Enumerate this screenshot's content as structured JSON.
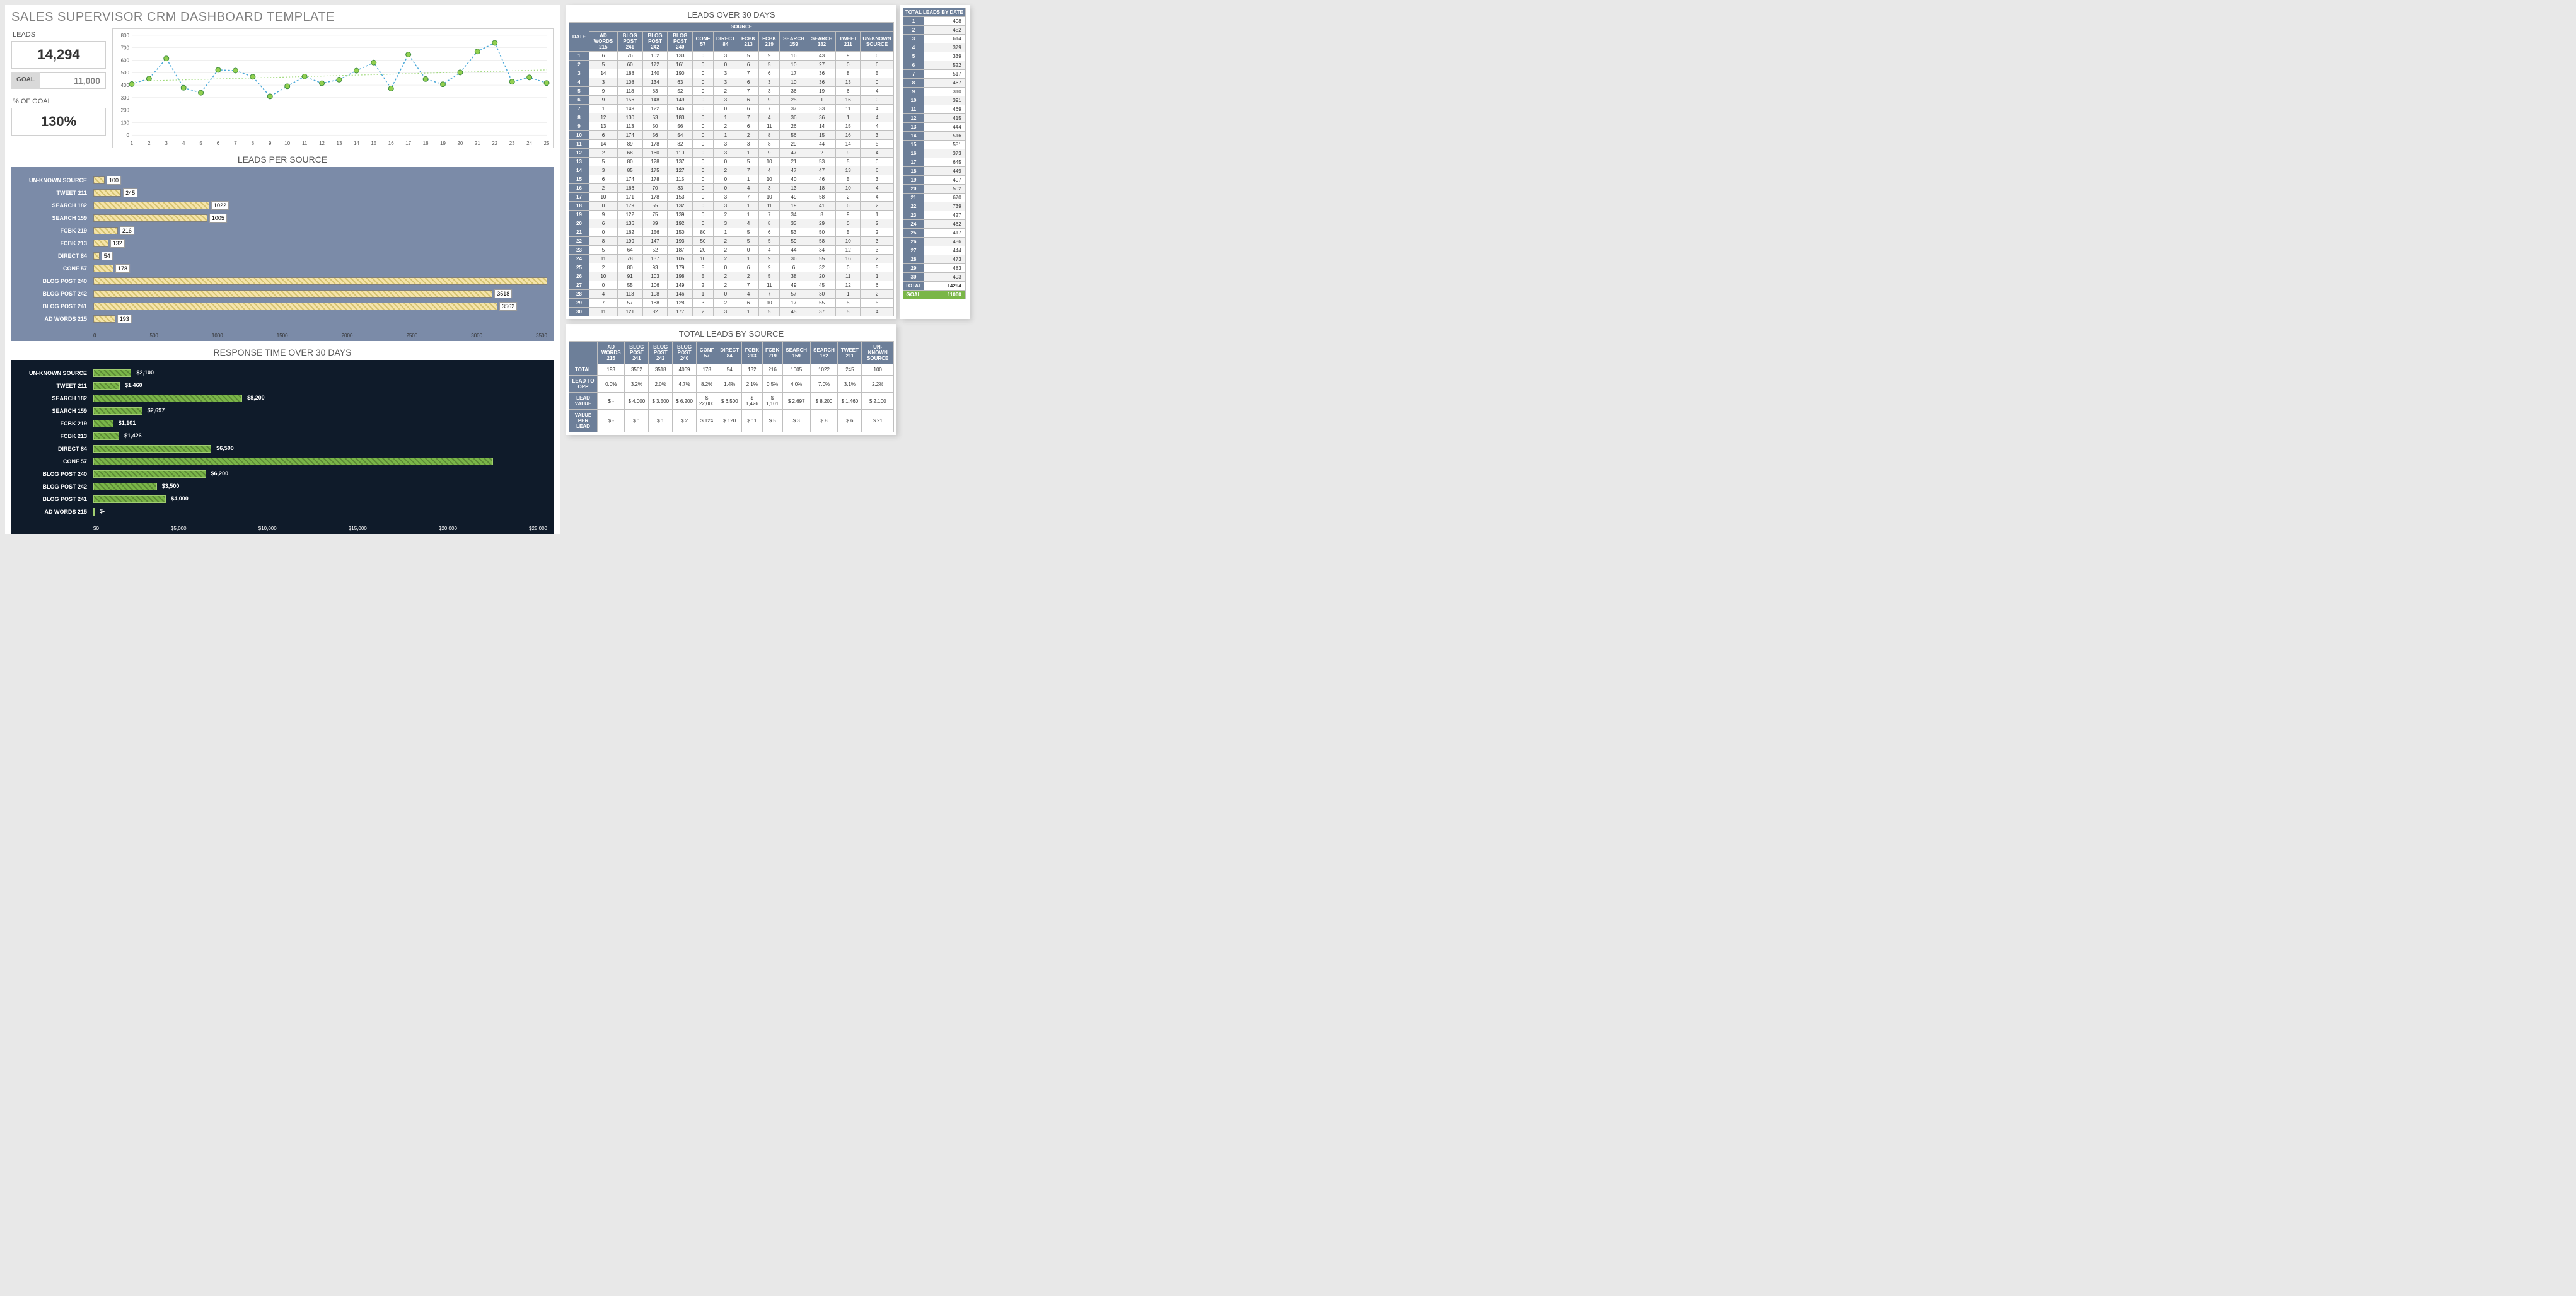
{
  "title": "SALES SUPERVISOR CRM DASHBOARD TEMPLATE",
  "metrics": {
    "leads_label": "LEADS",
    "leads_value": "14,294",
    "goal_label": "GOAL",
    "goal_value": "11,000",
    "pct_label": "% OF GOAL",
    "pct_value": "130%"
  },
  "line_chart": {
    "type": "line",
    "x_labels": [
      "1",
      "2",
      "3",
      "4",
      "5",
      "6",
      "7",
      "8",
      "9",
      "10",
      "11",
      "12",
      "13",
      "14",
      "15",
      "16",
      "17",
      "18",
      "19",
      "20",
      "21",
      "22",
      "23",
      "24",
      "25"
    ],
    "series_values": [
      408,
      452,
      614,
      379,
      339,
      522,
      517,
      467,
      310,
      391,
      469,
      415,
      444,
      516,
      581,
      373,
      645,
      449,
      407,
      502,
      670,
      739,
      427,
      462,
      417
    ],
    "ylim": [
      0,
      800
    ],
    "ytick_step": 100,
    "marker_color": "#92d050",
    "line_color": "#4aa8d8",
    "trend_color": "#9fd97a",
    "marker_radius": 4,
    "line_dash": "3,3",
    "background": "#ffffff",
    "grid_color": "#e0e0e0",
    "axis_text_color": "#595959"
  },
  "leads_per_source": {
    "title": "LEADS PER SOURCE",
    "bar_fill": "#f5e4aa",
    "bar_pattern": "#d4c270",
    "bar_border": "#7f7f7f",
    "label_color": "#ffffff",
    "background": "#7b8ba8",
    "x_max": 4000,
    "x_ticks": [
      "0",
      "500",
      "1000",
      "1500",
      "2000",
      "2500",
      "3000",
      "3500"
    ],
    "rows": [
      {
        "label": "UN-KNOWN SOURCE",
        "value": 100,
        "display": "100"
      },
      {
        "label": "TWEET 211",
        "value": 245,
        "display": "245"
      },
      {
        "label": "SEARCH 182",
        "value": 1022,
        "display": "1022"
      },
      {
        "label": "SEARCH 159",
        "value": 1005,
        "display": "1005"
      },
      {
        "label": "FCBK 219",
        "value": 216,
        "display": "216"
      },
      {
        "label": "FCBK 213",
        "value": 132,
        "display": "132"
      },
      {
        "label": "DIRECT 84",
        "value": 54,
        "display": "54"
      },
      {
        "label": "CONF 57",
        "value": 178,
        "display": "178"
      },
      {
        "label": "BLOG POST 240",
        "value": 4069,
        "display": ""
      },
      {
        "label": "BLOG POST 242",
        "value": 3518,
        "display": "3518"
      },
      {
        "label": "BLOG POST 241",
        "value": 3562,
        "display": "3562"
      },
      {
        "label": "AD WORDS 215",
        "value": 193,
        "display": "193"
      }
    ]
  },
  "response_time": {
    "title": "RESPONSE TIME OVER 30 DAYS",
    "bar_fill": "#7ab648",
    "bar_pattern": "#5c8a36",
    "bar_border": "#a0cd70",
    "label_color": "#ffffff",
    "background": "#0f1b2a",
    "x_max": 25000,
    "x_ticks": [
      "$0",
      "$5,000",
      "$10,000",
      "$15,000",
      "$20,000",
      "$25,000"
    ],
    "rows": [
      {
        "label": "UN-KNOWN SOURCE",
        "value": 2100,
        "display": "$2,100"
      },
      {
        "label": "TWEET 211",
        "value": 1460,
        "display": "$1,460"
      },
      {
        "label": "SEARCH 182",
        "value": 8200,
        "display": "$8,200"
      },
      {
        "label": "SEARCH 159",
        "value": 2697,
        "display": "$2,697"
      },
      {
        "label": "FCBK 219",
        "value": 1101,
        "display": "$1,101"
      },
      {
        "label": "FCBK 213",
        "value": 1426,
        "display": "$1,426"
      },
      {
        "label": "DIRECT 84",
        "value": 6500,
        "display": "$6,500"
      },
      {
        "label": "CONF 57",
        "value": 22000,
        "display": ""
      },
      {
        "label": "BLOG POST 240",
        "value": 6200,
        "display": "$6,200"
      },
      {
        "label": "BLOG POST 242",
        "value": 3500,
        "display": "$3,500"
      },
      {
        "label": "BLOG POST 241",
        "value": 4000,
        "display": "$4,000"
      },
      {
        "label": "AD WORDS 215",
        "value": 0,
        "display": "$-"
      }
    ]
  },
  "leads_30": {
    "title": "LEADS OVER 30 DAYS",
    "super_header": "SOURCE",
    "date_header": "DATE",
    "columns": [
      "AD WORDS 215",
      "BLOG POST 241",
      "BLOG POST 242",
      "BLOG POST 240",
      "CONF 57",
      "DIRECT 84",
      "FCBK 213",
      "FCBK 219",
      "SEARCH 159",
      "SEARCH 182",
      "TWEET 211",
      "UN-KNOWN SOURCE"
    ],
    "rows": [
      [
        6,
        76,
        102,
        133,
        0,
        3,
        5,
        9,
        16,
        43,
        9,
        6
      ],
      [
        5,
        60,
        172,
        161,
        0,
        0,
        6,
        5,
        10,
        27,
        0,
        6
      ],
      [
        14,
        188,
        140,
        190,
        0,
        3,
        7,
        6,
        17,
        36,
        8,
        5
      ],
      [
        3,
        108,
        134,
        63,
        0,
        3,
        6,
        3,
        10,
        36,
        13,
        0
      ],
      [
        9,
        118,
        83,
        52,
        0,
        2,
        7,
        3,
        36,
        19,
        6,
        4
      ],
      [
        9,
        156,
        148,
        149,
        0,
        3,
        6,
        9,
        25,
        1,
        16,
        0
      ],
      [
        1,
        149,
        122,
        146,
        0,
        0,
        6,
        7,
        37,
        33,
        11,
        4
      ],
      [
        12,
        130,
        53,
        183,
        0,
        1,
        7,
        4,
        36,
        36,
        1,
        4
      ],
      [
        13,
        113,
        50,
        56,
        0,
        2,
        6,
        11,
        26,
        14,
        15,
        4
      ],
      [
        6,
        174,
        56,
        54,
        0,
        1,
        2,
        8,
        56,
        15,
        16,
        3
      ],
      [
        14,
        89,
        178,
        82,
        0,
        3,
        3,
        8,
        29,
        44,
        14,
        5
      ],
      [
        2,
        68,
        160,
        110,
        0,
        3,
        1,
        9,
        47,
        2,
        9,
        4
      ],
      [
        5,
        80,
        128,
        137,
        0,
        0,
        5,
        10,
        21,
        53,
        5,
        0
      ],
      [
        3,
        85,
        175,
        127,
        0,
        2,
        7,
        4,
        47,
        47,
        13,
        6
      ],
      [
        6,
        174,
        178,
        115,
        0,
        0,
        1,
        10,
        40,
        46,
        5,
        3
      ],
      [
        2,
        166,
        70,
        83,
        0,
        0,
        4,
        3,
        13,
        18,
        10,
        4
      ],
      [
        10,
        171,
        178,
        153,
        0,
        3,
        7,
        10,
        49,
        58,
        2,
        4
      ],
      [
        0,
        179,
        55,
        132,
        0,
        3,
        1,
        11,
        19,
        41,
        6,
        2
      ],
      [
        9,
        122,
        75,
        139,
        0,
        2,
        1,
        7,
        34,
        8,
        9,
        1
      ],
      [
        6,
        136,
        89,
        192,
        0,
        3,
        4,
        8,
        33,
        29,
        0,
        2
      ],
      [
        0,
        162,
        156,
        150,
        80,
        1,
        5,
        6,
        53,
        50,
        5,
        2
      ],
      [
        8,
        199,
        147,
        193,
        50,
        2,
        5,
        5,
        59,
        58,
        10,
        3
      ],
      [
        5,
        64,
        52,
        187,
        20,
        2,
        0,
        4,
        44,
        34,
        12,
        3
      ],
      [
        11,
        78,
        137,
        105,
        10,
        2,
        1,
        9,
        36,
        55,
        16,
        2
      ],
      [
        2,
        80,
        93,
        179,
        5,
        0,
        6,
        9,
        6,
        32,
        0,
        5
      ],
      [
        10,
        91,
        103,
        198,
        5,
        2,
        2,
        5,
        38,
        20,
        11,
        1
      ],
      [
        0,
        55,
        106,
        149,
        2,
        2,
        7,
        11,
        49,
        45,
        12,
        6
      ],
      [
        4,
        113,
        108,
        146,
        1,
        0,
        4,
        7,
        57,
        30,
        1,
        2
      ],
      [
        7,
        57,
        188,
        128,
        3,
        2,
        6,
        10,
        17,
        55,
        5,
        5
      ],
      [
        11,
        121,
        82,
        177,
        2,
        3,
        1,
        5,
        45,
        37,
        5,
        4
      ]
    ]
  },
  "totals_by_date": {
    "header": "TOTAL LEADS BY DATE",
    "rows": [
      408,
      452,
      614,
      379,
      339,
      522,
      517,
      467,
      310,
      391,
      469,
      415,
      444,
      516,
      581,
      373,
      645,
      449,
      407,
      502,
      670,
      739,
      427,
      462,
      417,
      486,
      444,
      473,
      483,
      493
    ],
    "total_label": "TOTAL",
    "total_value": "14294",
    "goal_label": "GOAL",
    "goal_value": "11000"
  },
  "totals_by_source": {
    "title": "TOTAL LEADS BY SOURCE",
    "columns": [
      "AD WORDS 215",
      "BLOG POST 241",
      "BLOG POST 242",
      "BLOG POST 240",
      "CONF 57",
      "DIRECT 84",
      "FCBK 213",
      "FCBK 219",
      "SEARCH 159",
      "SEARCH 182",
      "TWEET 211",
      "UN-KNOWN SOURCE"
    ],
    "row_labels": [
      "TOTAL",
      "LEAD TO OPP",
      "LEAD VALUE",
      "VALUE PER LEAD"
    ],
    "rows": [
      [
        "193",
        "3562",
        "3518",
        "4069",
        "178",
        "54",
        "132",
        "216",
        "1005",
        "1022",
        "245",
        "100"
      ],
      [
        "0.0%",
        "3.2%",
        "2.0%",
        "4.7%",
        "8.2%",
        "1.4%",
        "2.1%",
        "0.5%",
        "4.0%",
        "7.0%",
        "3.1%",
        "2.2%"
      ],
      [
        "$ -",
        "$ 4,000",
        "$ 3,500",
        "$ 6,200",
        "$ 22,000",
        "$ 6,500",
        "$ 1,426",
        "$ 1,101",
        "$ 2,697",
        "$ 8,200",
        "$ 1,460",
        "$ 2,100"
      ],
      [
        "$ -",
        "$ 1",
        "$ 1",
        "$ 2",
        "$ 124",
        "$ 120",
        "$ 11",
        "$ 5",
        "$ 3",
        "$ 8",
        "$ 6",
        "$ 21"
      ]
    ]
  },
  "colors": {
    "header_bg": "#6d7f99",
    "header_text": "#ffffff",
    "stripe": "#f2f2f2",
    "border": "#bfbfbf"
  }
}
